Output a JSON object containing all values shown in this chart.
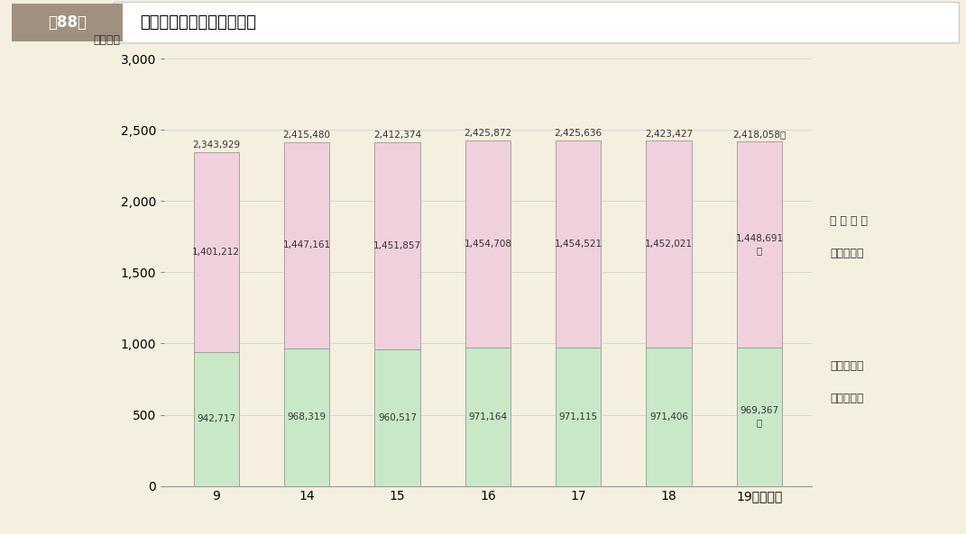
{
  "ylabel": "（千戸）",
  "categories": [
    "9",
    "14",
    "15",
    "16",
    "17",
    "18",
    "19"
  ],
  "pref_values": [
    942717,
    968319,
    960517,
    971164,
    971115,
    971406,
    969367
  ],
  "city_values": [
    1401212,
    1447161,
    1451857,
    1454708,
    1454521,
    1452021,
    1448691
  ],
  "total_labels": [
    "2,343,929",
    "2,415,480",
    "2,412,374",
    "2,425,872",
    "2,425,636",
    "2,423,427",
    "2,418,058戸"
  ],
  "pref_labels": [
    "942,717",
    "968,319",
    "960,517",
    "971,164",
    "971,115",
    "971,406",
    "969,367"
  ],
  "city_labels": [
    "1,401,212",
    "1,447,161",
    "1,451,857",
    "1,454,708",
    "1,454,521",
    "1,452,021",
    "1,448,691"
  ],
  "pref_color": "#c8e8c8",
  "city_color": "#f0d0dc",
  "pref_legend_line1": "都道府県営",
  "pref_legend_line2": "公営住宅等",
  "city_legend_line1": "市 町 村 営",
  "city_legend_line2": "公営住宅等",
  "background_color": "#f5efe0",
  "plot_background": "#f5efe0",
  "ylim": [
    0,
    3000
  ],
  "yticks": [
    0,
    500,
    1000,
    1500,
    2000,
    2500,
    3000
  ],
  "bar_width": 0.5,
  "figure_title": "公営住宅等の総戸数の推移",
  "figure_title_label": "箌88図",
  "title_bg_color": "#a09080",
  "title_white_color": "#ffffff",
  "border_color": "#cccccc"
}
